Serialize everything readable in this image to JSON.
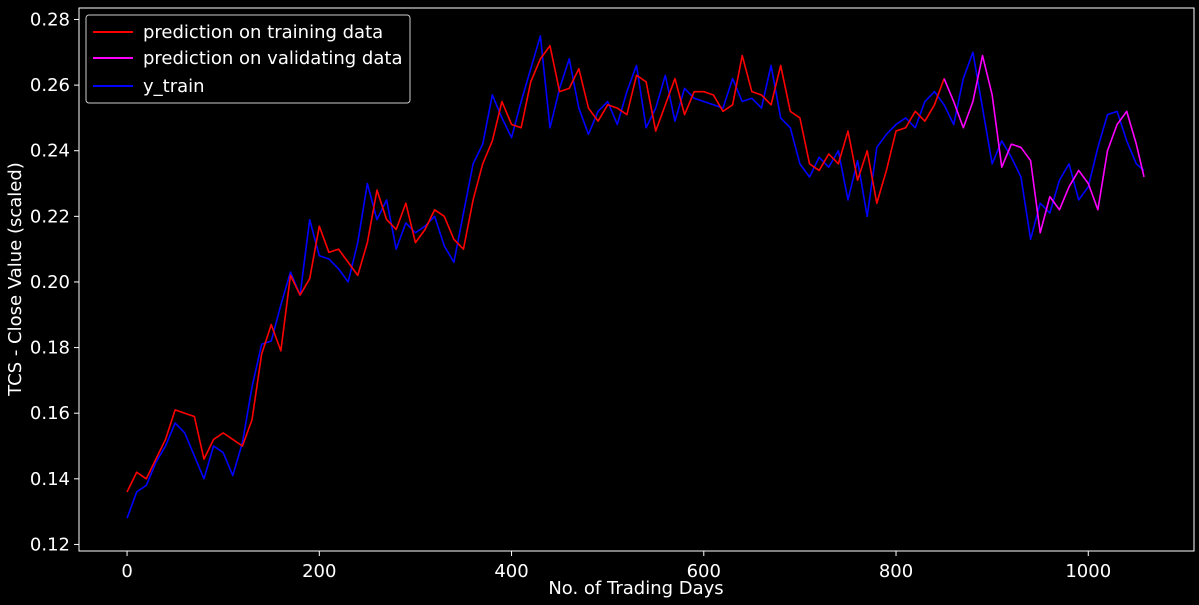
{
  "chart_data": {
    "type": "line",
    "title": "",
    "xlabel": "No. of Trading Days",
    "ylabel": "TCS - Close Value (scaled)",
    "xlim": [
      -50,
      1110
    ],
    "ylim": [
      0.118,
      0.2835
    ],
    "xticks": [
      0,
      200,
      400,
      600,
      800,
      1000
    ],
    "yticks": [
      0.12,
      0.14,
      0.16,
      0.18,
      0.2,
      0.22,
      0.24,
      0.26,
      0.28
    ],
    "xtick_labels": [
      "0",
      "200",
      "400",
      "600",
      "800",
      "1000"
    ],
    "ytick_labels": [
      "0.12",
      "0.14",
      "0.16",
      "0.18",
      "0.20",
      "0.22",
      "0.24",
      "0.26",
      "0.28"
    ],
    "grid": false,
    "legend_position": "upper-left",
    "background": "#000000",
    "series": [
      {
        "name": "prediction on training data",
        "color": "#ff0000",
        "x": [
          0,
          10,
          20,
          30,
          40,
          50,
          60,
          70,
          80,
          90,
          100,
          110,
          120,
          130,
          140,
          150,
          160,
          170,
          180,
          190,
          200,
          210,
          220,
          230,
          240,
          250,
          260,
          270,
          280,
          290,
          300,
          310,
          320,
          330,
          340,
          350,
          360,
          370,
          380,
          390,
          400,
          410,
          420,
          430,
          440,
          450,
          460,
          470,
          480,
          490,
          500,
          510,
          520,
          530,
          540,
          550,
          560,
          570,
          580,
          590,
          600,
          610,
          620,
          630,
          640,
          650,
          660,
          670,
          680,
          690,
          700,
          710,
          720,
          730,
          740,
          750,
          760,
          770,
          780,
          790,
          800,
          810,
          820,
          830,
          840,
          850
        ],
        "y": [
          0.136,
          0.142,
          0.14,
          0.146,
          0.152,
          0.161,
          0.16,
          0.159,
          0.146,
          0.152,
          0.154,
          0.152,
          0.15,
          0.158,
          0.178,
          0.187,
          0.179,
          0.202,
          0.196,
          0.201,
          0.217,
          0.209,
          0.21,
          0.206,
          0.202,
          0.212,
          0.228,
          0.219,
          0.216,
          0.224,
          0.212,
          0.216,
          0.222,
          0.22,
          0.213,
          0.21,
          0.225,
          0.236,
          0.243,
          0.255,
          0.248,
          0.247,
          0.261,
          0.268,
          0.272,
          0.258,
          0.259,
          0.265,
          0.253,
          0.249,
          0.254,
          0.253,
          0.251,
          0.263,
          0.261,
          0.246,
          0.254,
          0.262,
          0.251,
          0.258,
          0.258,
          0.257,
          0.252,
          0.254,
          0.269,
          0.258,
          0.257,
          0.254,
          0.266,
          0.252,
          0.25,
          0.236,
          0.234,
          0.239,
          0.236,
          0.246,
          0.231,
          0.24,
          0.224,
          0.234,
          0.246,
          0.247,
          0.252,
          0.249,
          0.254,
          0.262
        ]
      },
      {
        "name": "prediction on validating data",
        "color": "#ff00ff",
        "x": [
          850,
          860,
          870,
          880,
          890,
          900,
          910,
          920,
          930,
          940,
          950,
          960,
          970,
          980,
          990,
          1000,
          1010,
          1020,
          1030,
          1040,
          1050,
          1058
        ],
        "y": [
          0.262,
          0.255,
          0.247,
          0.255,
          0.269,
          0.257,
          0.235,
          0.242,
          0.241,
          0.237,
          0.215,
          0.226,
          0.222,
          0.229,
          0.234,
          0.23,
          0.222,
          0.24,
          0.248,
          0.252,
          0.242,
          0.232
        ]
      },
      {
        "name": "y_train",
        "color": "#0000ff",
        "x": [
          0,
          10,
          20,
          30,
          40,
          50,
          60,
          70,
          80,
          90,
          100,
          110,
          120,
          130,
          140,
          150,
          160,
          170,
          180,
          190,
          200,
          210,
          220,
          230,
          240,
          250,
          260,
          270,
          280,
          290,
          300,
          310,
          320,
          330,
          340,
          350,
          360,
          370,
          380,
          390,
          400,
          410,
          420,
          430,
          440,
          450,
          460,
          470,
          480,
          490,
          500,
          510,
          520,
          530,
          540,
          550,
          560,
          570,
          580,
          590,
          600,
          610,
          620,
          630,
          640,
          650,
          660,
          670,
          680,
          690,
          700,
          710,
          720,
          730,
          740,
          750,
          760,
          770,
          780,
          790,
          800,
          810,
          820,
          830,
          840,
          850,
          860,
          870,
          880,
          890,
          900,
          910,
          920,
          930,
          940,
          950,
          960,
          970,
          980,
          990,
          1000,
          1010,
          1020,
          1030,
          1040,
          1050,
          1058
        ],
        "y": [
          0.128,
          0.136,
          0.138,
          0.145,
          0.15,
          0.157,
          0.154,
          0.147,
          0.14,
          0.15,
          0.148,
          0.141,
          0.151,
          0.168,
          0.181,
          0.182,
          0.193,
          0.203,
          0.196,
          0.219,
          0.208,
          0.207,
          0.204,
          0.2,
          0.212,
          0.23,
          0.219,
          0.225,
          0.21,
          0.218,
          0.215,
          0.217,
          0.22,
          0.211,
          0.206,
          0.221,
          0.236,
          0.242,
          0.257,
          0.25,
          0.244,
          0.255,
          0.265,
          0.275,
          0.247,
          0.259,
          0.268,
          0.253,
          0.245,
          0.252,
          0.255,
          0.248,
          0.258,
          0.266,
          0.247,
          0.253,
          0.263,
          0.249,
          0.259,
          0.256,
          0.255,
          0.254,
          0.253,
          0.262,
          0.255,
          0.256,
          0.253,
          0.266,
          0.25,
          0.247,
          0.236,
          0.232,
          0.238,
          0.235,
          0.24,
          0.225,
          0.237,
          0.22,
          0.241,
          0.245,
          0.248,
          0.25,
          0.247,
          0.255,
          0.258,
          0.254,
          0.248,
          0.262,
          0.27,
          0.253,
          0.236,
          0.243,
          0.238,
          0.232,
          0.213,
          0.224,
          0.221,
          0.231,
          0.236,
          0.225,
          0.229,
          0.241,
          0.251,
          0.252,
          0.243,
          0.236,
          0.234
        ]
      }
    ]
  }
}
